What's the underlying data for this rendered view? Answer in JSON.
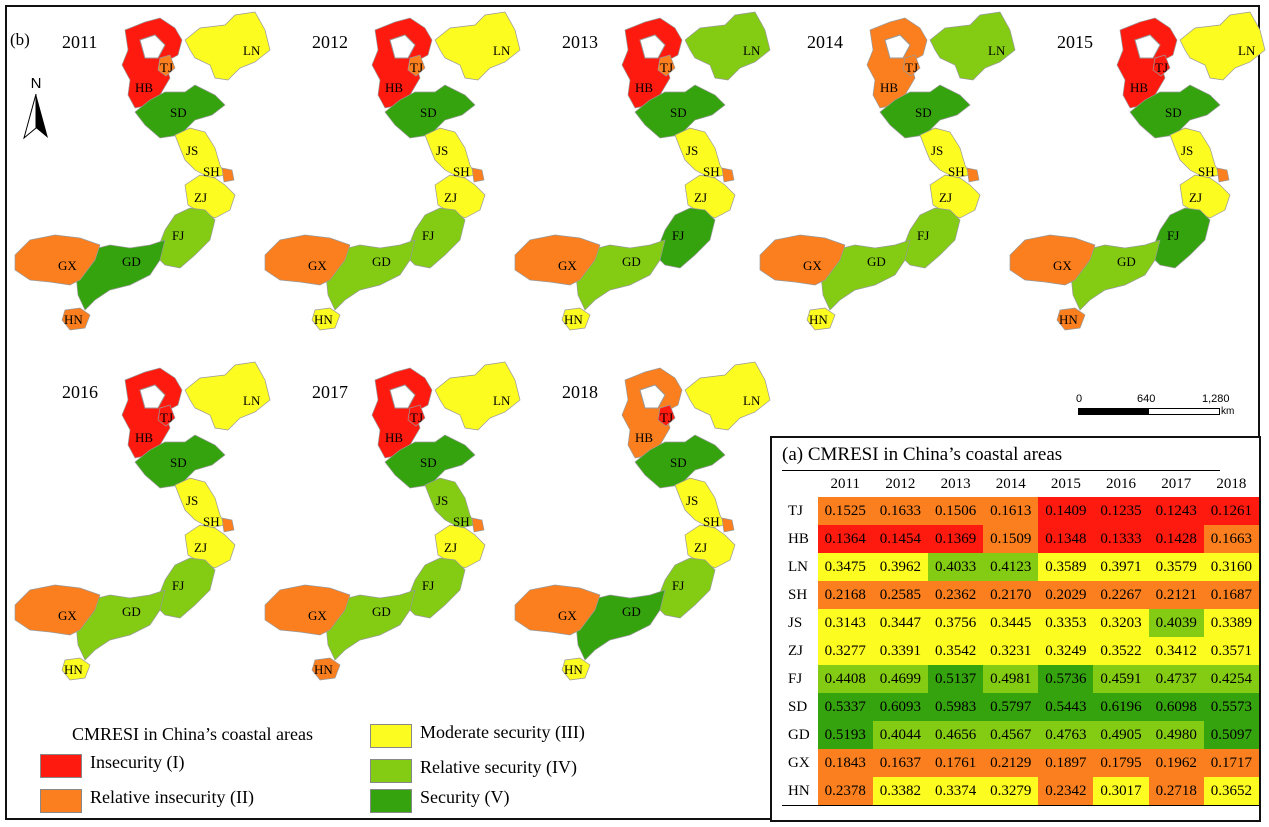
{
  "panel_b_label": "(b)",
  "colors": {
    "1": "#ff1a0f",
    "2": "#fb7f1e",
    "3": "#fcfc21",
    "4": "#84cc13",
    "5": "#35a30e"
  },
  "years": [
    "2011",
    "2012",
    "2013",
    "2014",
    "2015",
    "2016",
    "2017",
    "2018"
  ],
  "regions": [
    "TJ",
    "HB",
    "LN",
    "SH",
    "JS",
    "ZJ",
    "FJ",
    "SD",
    "GD",
    "GX",
    "HN"
  ],
  "classes": {
    "TJ": [
      2,
      2,
      2,
      2,
      1,
      1,
      1,
      1
    ],
    "HB": [
      1,
      1,
      1,
      2,
      1,
      1,
      1,
      2
    ],
    "LN": [
      3,
      3,
      4,
      4,
      3,
      3,
      3,
      3
    ],
    "SH": [
      2,
      2,
      2,
      2,
      2,
      2,
      2,
      2
    ],
    "JS": [
      3,
      3,
      3,
      3,
      3,
      3,
      4,
      3
    ],
    "ZJ": [
      3,
      3,
      3,
      3,
      3,
      3,
      3,
      3
    ],
    "FJ": [
      4,
      4,
      5,
      4,
      5,
      4,
      4,
      4
    ],
    "SD": [
      5,
      5,
      5,
      5,
      5,
      5,
      5,
      5
    ],
    "GD": [
      5,
      4,
      4,
      4,
      4,
      4,
      4,
      5
    ],
    "GX": [
      2,
      2,
      2,
      2,
      2,
      2,
      2,
      2
    ],
    "HN": [
      2,
      3,
      3,
      3,
      2,
      3,
      2,
      3
    ]
  },
  "table": {
    "title": "(a) CMRESI in China’s coastal areas",
    "columns": [
      "2011",
      "2012",
      "2013",
      "2014",
      "2015",
      "2016",
      "2017",
      "2018"
    ],
    "rows": [
      {
        "region": "TJ",
        "values": [
          "0.1525",
          "0.1633",
          "0.1506",
          "0.1613",
          "0.1409",
          "0.1235",
          "0.1243",
          "0.1261"
        ]
      },
      {
        "region": "HB",
        "values": [
          "0.1364",
          "0.1454",
          "0.1369",
          "0.1509",
          "0.1348",
          "0.1333",
          "0.1428",
          "0.1663"
        ]
      },
      {
        "region": "LN",
        "values": [
          "0.3475",
          "0.3962",
          "0.4033",
          "0.4123",
          "0.3589",
          "0.3971",
          "0.3579",
          "0.3160"
        ]
      },
      {
        "region": "SH",
        "values": [
          "0.2168",
          "0.2585",
          "0.2362",
          "0.2170",
          "0.2029",
          "0.2267",
          "0.2121",
          "0.1687"
        ]
      },
      {
        "region": "JS",
        "values": [
          "0.3143",
          "0.3447",
          "0.3756",
          "0.3445",
          "0.3353",
          "0.3203",
          "0.4039",
          "0.3389"
        ]
      },
      {
        "region": "ZJ",
        "values": [
          "0.3277",
          "0.3391",
          "0.3542",
          "0.3231",
          "0.3249",
          "0.3522",
          "0.3412",
          "0.3571"
        ]
      },
      {
        "region": "FJ",
        "values": [
          "0.4408",
          "0.4699",
          "0.5137",
          "0.4981",
          "0.5736",
          "0.4591",
          "0.4737",
          "0.4254"
        ]
      },
      {
        "region": "SD",
        "values": [
          "0.5337",
          "0.6093",
          "0.5983",
          "0.5797",
          "0.5443",
          "0.6196",
          "0.6098",
          "0.5573"
        ]
      },
      {
        "region": "GD",
        "values": [
          "0.5193",
          "0.4044",
          "0.4656",
          "0.4567",
          "0.4763",
          "0.4905",
          "0.4980",
          "0.5097"
        ]
      },
      {
        "region": "GX",
        "values": [
          "0.1843",
          "0.1637",
          "0.1761",
          "0.2129",
          "0.1897",
          "0.1795",
          "0.1962",
          "0.1717"
        ]
      },
      {
        "region": "HN",
        "values": [
          "0.2378",
          "0.3382",
          "0.3374",
          "0.3279",
          "0.2342",
          "0.3017",
          "0.2718",
          "0.3652"
        ]
      }
    ]
  },
  "legend": {
    "title": "CMRESI  in China’s coastal areas",
    "items": [
      {
        "label": "Insecurity (I)",
        "class": 1
      },
      {
        "label": "Relative insecurity (II)",
        "class": 2
      },
      {
        "label": "Moderate security (III)",
        "class": 3
      },
      {
        "label": "Relative security (IV)",
        "class": 4
      },
      {
        "label": "Security (V)",
        "class": 5
      }
    ]
  },
  "north_label": "N",
  "scale": {
    "ticks": [
      "0",
      "640",
      "1,280"
    ],
    "unit": "km"
  }
}
